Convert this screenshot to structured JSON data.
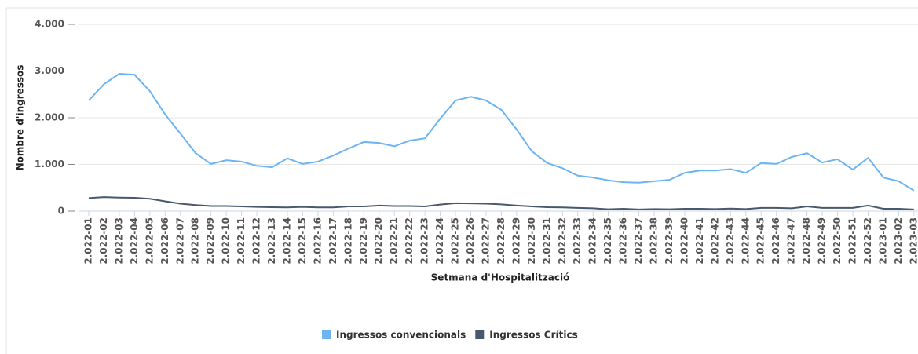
{
  "chart_data": {
    "type": "line",
    "y_label": "Nombre d'ingressos",
    "x_label": "Setmana d'Hospitalització",
    "categories": [
      "2.022-01",
      "2.022-02",
      "2.022-03",
      "2.022-04",
      "2.022-05",
      "2.022-06",
      "2.022-07",
      "2.022-08",
      "2.022-09",
      "2.022-10",
      "2.022-11",
      "2.022-12",
      "2.022-13",
      "2.022-14",
      "2.022-15",
      "2.022-16",
      "2.022-17",
      "2.022-18",
      "2.022-19",
      "2.022-20",
      "2.022-21",
      "2.022-22",
      "2.022-23",
      "2.022-24",
      "2.022-25",
      "2.022-26",
      "2.022-27",
      "2.022-28",
      "2.022-29",
      "2.022-30",
      "2.022-31",
      "2.022-32",
      "2.022-33",
      "2.022-34",
      "2.022-35",
      "2.022-36",
      "2.022-37",
      "2.022-38",
      "2.022-39",
      "2.022-40",
      "2.022-41",
      "2.022-42",
      "2.022-43",
      "2.022-44",
      "2.022-45",
      "2.022-46",
      "2.022-47",
      "2.022-48",
      "2.022-49",
      "2.022-50",
      "2.022-51",
      "2.022-52",
      "2.023-01",
      "2.023-02",
      "2.023-03"
    ],
    "series": [
      {
        "name": "Ingressos convencionals",
        "color": "#6cb4f3",
        "values": [
          2370,
          2720,
          2940,
          2920,
          2570,
          2070,
          1660,
          1240,
          1010,
          1090,
          1060,
          970,
          940,
          1130,
          1010,
          1060,
          1190,
          1340,
          1480,
          1460,
          1390,
          1510,
          1560,
          1980,
          2370,
          2450,
          2370,
          2170,
          1750,
          1280,
          1030,
          920,
          760,
          720,
          660,
          620,
          610,
          640,
          670,
          820,
          870,
          870,
          900,
          820,
          1030,
          1010,
          1160,
          1240,
          1040,
          1110,
          890,
          1140,
          720,
          640,
          440
        ]
      },
      {
        "name": "Ingressos Crítics",
        "color": "#48596b",
        "values": [
          280,
          300,
          290,
          285,
          265,
          210,
          160,
          130,
          110,
          110,
          100,
          90,
          85,
          80,
          90,
          80,
          80,
          100,
          100,
          120,
          110,
          110,
          100,
          140,
          170,
          165,
          160,
          145,
          120,
          100,
          85,
          80,
          70,
          60,
          40,
          50,
          35,
          45,
          40,
          50,
          50,
          45,
          55,
          45,
          70,
          70,
          60,
          100,
          70,
          70,
          70,
          120,
          50,
          50,
          35
        ]
      }
    ],
    "ylim": [
      0,
      4000
    ],
    "yticks": [
      0,
      {
        "value": 1000,
        "label": "1.000"
      },
      {
        "value": 2000,
        "label": "2.000"
      },
      {
        "value": 3000,
        "label": "3.000"
      },
      {
        "value": 4000,
        "label": "4.000"
      }
    ],
    "grid": true
  }
}
